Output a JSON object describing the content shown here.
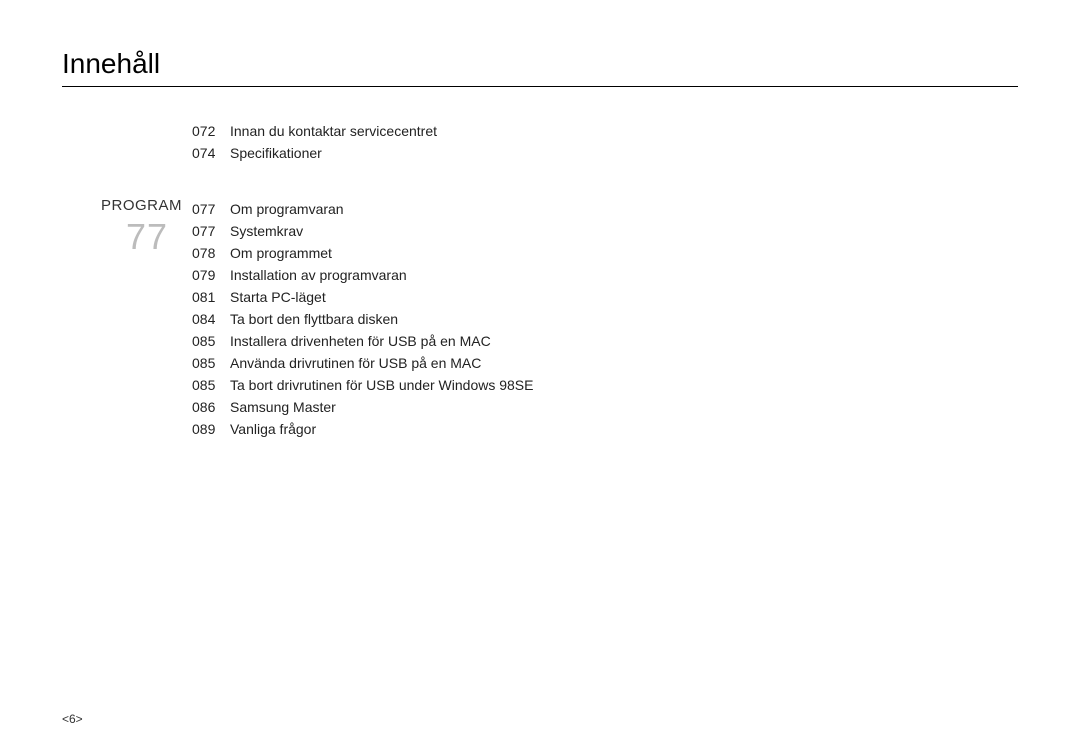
{
  "title": "Innehåll",
  "section": {
    "label": "PROGRAM",
    "number": "77"
  },
  "group1": [
    {
      "num": "072",
      "text": "Innan du kontaktar servicecentret"
    },
    {
      "num": "074",
      "text": "Specifikationer"
    }
  ],
  "group2": [
    {
      "num": "077",
      "text": "Om programvaran"
    },
    {
      "num": "077",
      "text": "Systemkrav"
    },
    {
      "num": "078",
      "text": "Om programmet"
    },
    {
      "num": "079",
      "text": "Installation av programvaran"
    },
    {
      "num": "081",
      "text": "Starta PC-läget"
    },
    {
      "num": "084",
      "text": "Ta bort den flyttbara disken"
    },
    {
      "num": "085",
      "text": "Installera drivenheten för USB på en MAC"
    },
    {
      "num": "085",
      "text": "Använda drivrutinen för USB på en MAC"
    },
    {
      "num": "085",
      "text": "Ta bort drivrutinen för USB under Windows 98SE"
    },
    {
      "num": "086",
      "text": "Samsung Master"
    },
    {
      "num": "089",
      "text": "Vanliga frågor"
    }
  ],
  "pageNumber": "<6>",
  "colors": {
    "text": "#222222",
    "title": "#000000",
    "sectionNumber": "#bcbcbc",
    "rule": "#000000",
    "background": "#ffffff"
  },
  "fonts": {
    "title_size_pt": 21,
    "body_size_pt": 10.5,
    "section_number_size_pt": 27
  }
}
